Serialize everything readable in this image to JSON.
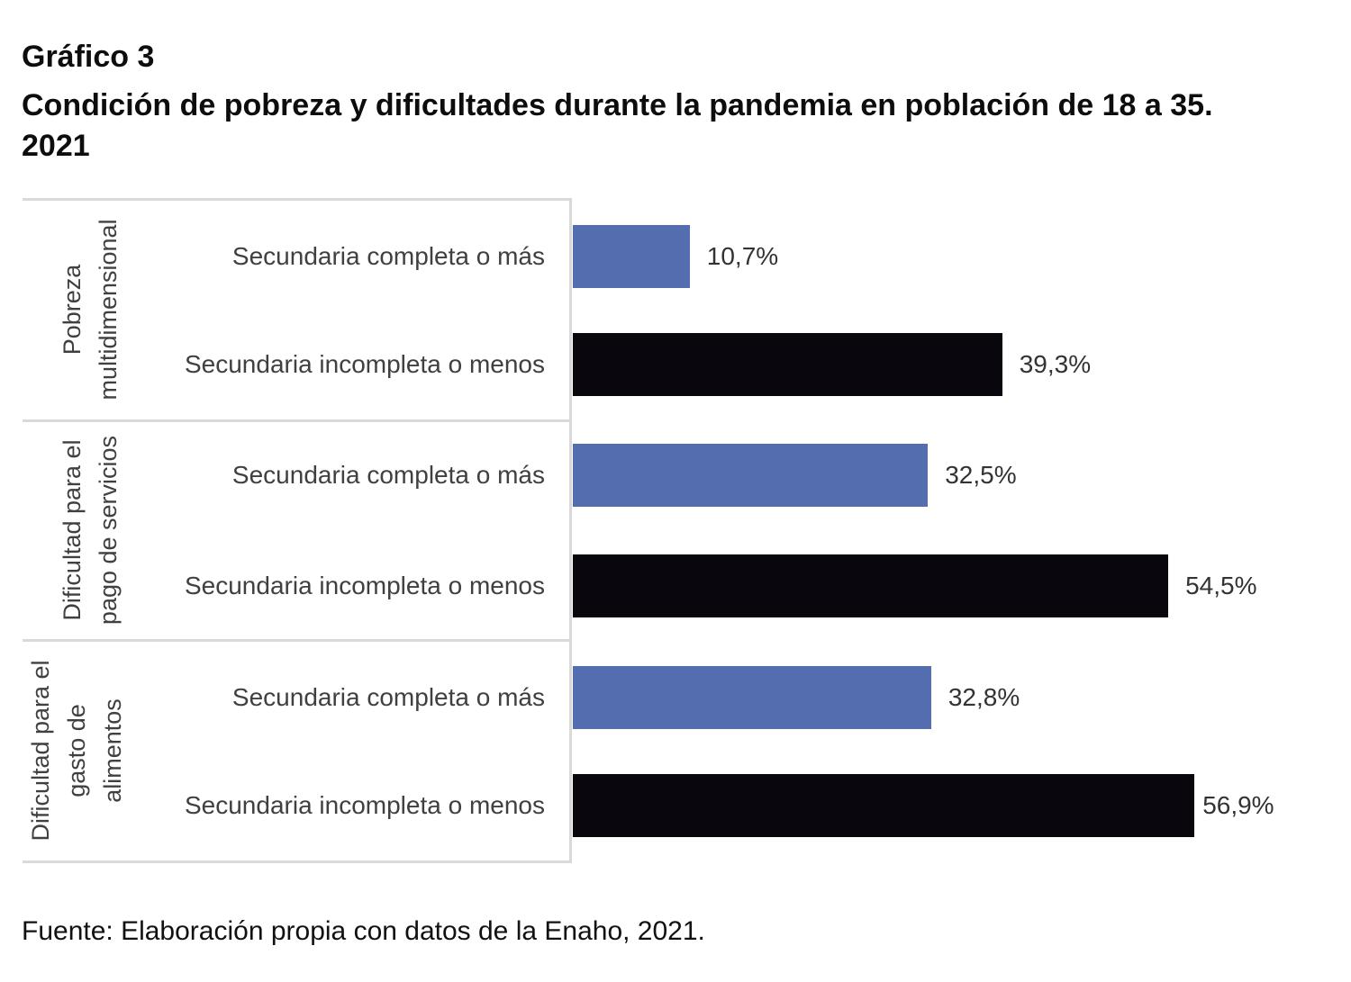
{
  "header": {
    "figure_label": "Gráfico 3",
    "title_line1": "Condición de pobreza y dificultades durante la pandemia en población de 18 a 35.",
    "title_line2": "2021"
  },
  "chart_data": {
    "type": "bar",
    "orientation": "horizontal",
    "groups": [
      {
        "label_lines": [
          "Pobreza",
          "multidimensional"
        ]
      },
      {
        "label_lines": [
          "Dificultad para el",
          "pago de servicios"
        ]
      },
      {
        "label_lines": [
          "Dificultad para el",
          "gasto de",
          "alimentos"
        ]
      }
    ],
    "bars": [
      {
        "group": 0,
        "category": "Secundaria completa o más",
        "value": 10.7,
        "label": "10,7%",
        "color": "#536DAE"
      },
      {
        "group": 0,
        "category": "Secundaria incompleta o menos",
        "value": 39.3,
        "label": "39,3%",
        "color": "#0A060D"
      },
      {
        "group": 1,
        "category": "Secundaria completa o más",
        "value": 32.5,
        "label": "32,5%",
        "color": "#536DAE"
      },
      {
        "group": 1,
        "category": "Secundaria incompleta o menos",
        "value": 54.5,
        "label": "54,5%",
        "color": "#0A060D"
      },
      {
        "group": 2,
        "category": "Secundaria completa o más",
        "value": 32.8,
        "label": "32,8%",
        "color": "#536DAE"
      },
      {
        "group": 2,
        "category": "Secundaria incompleta o menos",
        "value": 56.9,
        "label": "56,9%",
        "color": "#0A060D"
      }
    ],
    "xlim": [
      0,
      60
    ],
    "grid": false,
    "legend": "none"
  },
  "footer": {
    "source": "Fuente: Elaboración propia con datos de la Enaho, 2021."
  }
}
